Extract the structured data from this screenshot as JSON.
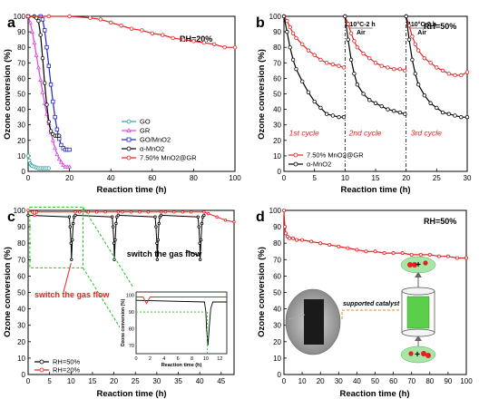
{
  "chart_data": [
    {
      "panel": "a",
      "type": "line",
      "annotation": "RH=20%",
      "xlabel": "Reaction time (h)",
      "ylabel": "Ozone conversion (%)",
      "xlim": [
        0,
        100
      ],
      "ylim": [
        0,
        100
      ],
      "xticks": [
        0,
        20,
        40,
        60,
        80,
        100
      ],
      "yticks": [
        0,
        10,
        20,
        30,
        40,
        50,
        60,
        70,
        80,
        90,
        100
      ],
      "legend_position": "bottom-right",
      "series": [
        {
          "name": "GO",
          "color": "#2ba3a3",
          "marker": "circle",
          "x": [
            0,
            0.5,
            1,
            1.5,
            2,
            3,
            4,
            5,
            6,
            7,
            8,
            9,
            10
          ],
          "y": [
            10,
            7,
            5,
            4,
            3.5,
            3,
            2.5,
            2,
            2,
            2,
            2,
            2,
            2
          ]
        },
        {
          "name": "GR",
          "color": "#e040e0",
          "marker": "triangle",
          "x": [
            0,
            1,
            2,
            3,
            4,
            5,
            6,
            7,
            8,
            9,
            10,
            11,
            12,
            13,
            14,
            15,
            16,
            17,
            18,
            19,
            20
          ],
          "y": [
            100,
            96,
            90,
            83,
            75,
            67,
            59,
            51,
            44,
            37,
            31,
            25,
            20,
            15,
            11,
            8,
            6,
            4,
            3,
            3,
            3
          ]
        },
        {
          "name": "GO/MnO2",
          "color": "#2222cc",
          "marker": "square",
          "x": [
            0,
            6,
            7,
            8,
            9,
            10,
            11,
            12,
            13,
            14,
            15,
            16,
            17,
            18,
            19,
            20
          ],
          "y": [
            100,
            100,
            98,
            91,
            80,
            68,
            56,
            45,
            35,
            27,
            21,
            17,
            15,
            14,
            14,
            14
          ]
        },
        {
          "name": "α-MnO2",
          "color": "#000000",
          "marker": "circle",
          "x": [
            0,
            3,
            4,
            5,
            6,
            7,
            8,
            9,
            10,
            11,
            12,
            13,
            14,
            15
          ],
          "y": [
            100,
            100,
            99,
            97,
            88,
            73,
            57,
            43,
            32,
            26,
            24,
            23,
            23,
            23
          ]
        },
        {
          "name": "7.50% MnO2@GR",
          "color": "#e82020",
          "marker": "circle",
          "x": [
            0,
            10,
            20,
            30,
            35,
            40,
            45,
            50,
            55,
            60,
            65,
            70,
            75,
            80,
            85,
            90,
            95,
            100
          ],
          "y": [
            100,
            100,
            100,
            99,
            98,
            96,
            94,
            92,
            91,
            89,
            88,
            86,
            85,
            84,
            83,
            82,
            80,
            80
          ]
        }
      ]
    },
    {
      "panel": "b",
      "type": "line",
      "annotation": "RH=50%",
      "xlabel": "Reaction time (h)",
      "ylabel": "Ozone conversion (%)",
      "xlim": [
        0,
        30
      ],
      "ylim": [
        0,
        100
      ],
      "xticks": [
        0,
        5,
        10,
        15,
        20,
        25,
        30
      ],
      "yticks": [
        0,
        10,
        20,
        30,
        40,
        50,
        60,
        70,
        80,
        90,
        100
      ],
      "cycle_dividers": [
        10,
        20
      ],
      "regeneration_labels": [
        {
          "x": 12.6,
          "line1": "110°C-2 h",
          "line2": "Air"
        },
        {
          "x": 22.6,
          "line1": "110°C-2 h",
          "line2": "Air"
        }
      ],
      "cycle_labels": [
        {
          "x": 3.3,
          "text": "1st cycle"
        },
        {
          "x": 13.3,
          "text": "2nd cycle"
        },
        {
          "x": 23.3,
          "text": "3rd cycle"
        }
      ],
      "legend_position": "bottom-left",
      "series": [
        {
          "name": "7.50% MnO2@GR",
          "color": "#e82020",
          "marker": "circle",
          "x": [
            0,
            0.5,
            1,
            1.5,
            2,
            3,
            4,
            5,
            6,
            7,
            8,
            9,
            9.8,
            10,
            10.5,
            11,
            11.5,
            12,
            13,
            14,
            15,
            16,
            17,
            18,
            19,
            19.8,
            20,
            20.5,
            21,
            21.5,
            22,
            23,
            24,
            25,
            26,
            27,
            28,
            29,
            30
          ],
          "y": [
            100,
            97,
            93,
            89,
            86,
            82,
            78,
            75,
            72,
            70,
            69,
            68,
            67,
            100,
            95,
            89,
            84,
            80,
            76,
            73,
            70,
            68,
            67,
            66,
            66,
            65,
            100,
            94,
            87,
            82,
            78,
            73,
            70,
            67,
            65,
            63,
            62,
            62,
            64
          ]
        },
        {
          "name": "α-MnO2",
          "color": "#000000",
          "marker": "circle",
          "x": [
            0,
            0.5,
            1,
            1.5,
            2,
            3,
            4,
            5,
            6,
            7,
            8,
            9,
            9.8,
            10,
            10.5,
            11,
            11.5,
            12,
            13,
            14,
            15,
            16,
            17,
            18,
            19,
            19.8,
            20,
            20.5,
            21,
            21.5,
            22,
            23,
            24,
            25,
            26,
            27,
            28,
            29,
            30
          ],
          "y": [
            100,
            90,
            80,
            72,
            66,
            58,
            51,
            45,
            41,
            37,
            36,
            35,
            35,
            100,
            85,
            72,
            63,
            56,
            50,
            46,
            44,
            42,
            40,
            39,
            38,
            37,
            100,
            85,
            72,
            63,
            56,
            49,
            44,
            41,
            38,
            37,
            36,
            35,
            35
          ]
        }
      ]
    },
    {
      "panel": "c",
      "type": "line",
      "xlabel": "Reaction time (h)",
      "ylabel": "Ozone conversion (%)",
      "xlim": [
        0,
        48
      ],
      "ylim": [
        0,
        100
      ],
      "xticks": [
        0,
        5,
        10,
        15,
        20,
        25,
        30,
        35,
        40,
        45
      ],
      "yticks": [
        0,
        10,
        20,
        30,
        40,
        50,
        60,
        70,
        80,
        90,
        100
      ],
      "annotations": [
        "switch the gas flow",
        "switch the gas flow"
      ],
      "legend_position": "bottom-left",
      "series": [
        {
          "name": "RH=50%",
          "color": "#000000",
          "marker": "circle",
          "x": [
            0,
            9.6,
            9.8,
            10,
            10.1,
            10.3,
            10.5,
            10.7,
            11,
            19.6,
            19.8,
            20,
            20.1,
            20.3,
            20.5,
            20.7,
            21,
            29.6,
            29.8,
            30,
            30.1,
            30.3,
            30.5,
            30.7,
            31,
            39.6,
            39.8,
            40,
            40.1,
            40.3,
            40.5,
            40.7,
            41
          ],
          "y": [
            97,
            96,
            90,
            80,
            70,
            82,
            92,
            96,
            97,
            96,
            90,
            80,
            70,
            82,
            92,
            96,
            97,
            96,
            90,
            80,
            70,
            82,
            92,
            96,
            97,
            96,
            90,
            80,
            70,
            82,
            92,
            96,
            97
          ]
        },
        {
          "name": "RH=20%",
          "color": "#e82020",
          "marker": "circle",
          "x": [
            0,
            1,
            1.5,
            2,
            11,
            12,
            14,
            16,
            18,
            21,
            22,
            24,
            26,
            28,
            31,
            32,
            34,
            36,
            38,
            41,
            42,
            44,
            46,
            48
          ],
          "y": [
            100,
            99,
            97,
            99,
            99,
            99,
            99,
            99,
            99,
            99,
            99,
            99,
            99,
            99,
            99,
            99,
            99,
            99,
            99,
            99,
            98,
            96,
            94,
            93
          ]
        }
      ],
      "inset": {
        "xlabel": "Reaction time (h)",
        "ylabel": "Ozone conversion (%)",
        "xlim": [
          0,
          13
        ],
        "ylim": [
          65,
          102
        ],
        "xticks": [
          0,
          2,
          4,
          6,
          8,
          10,
          12
        ],
        "yticks": [
          70,
          80,
          90,
          100
        ],
        "series": [
          {
            "name": "RH=50%",
            "color": "#000000",
            "x": [
              0,
              9.8,
              10,
              10.1,
              10.3,
              10.5,
              10.7,
              11,
              13
            ],
            "y": [
              97,
              96,
              90,
              80,
              70,
              82,
              92,
              96,
              96
            ]
          },
          {
            "name": "RH=20%",
            "color": "#e82020",
            "x": [
              0,
              1,
              1.5,
              2,
              4,
              6,
              8,
              10,
              11,
              13
            ],
            "y": [
              99,
              99,
              95,
              99,
              99,
              99,
              99,
              99,
              99,
              99
            ]
          }
        ]
      }
    },
    {
      "panel": "d",
      "type": "line",
      "annotation": "RH=50%",
      "xlabel": "Reaction time (h)",
      "ylabel": "Ozone conversion (%)",
      "xlim": [
        0,
        100
      ],
      "ylim": [
        0,
        100
      ],
      "xticks": [
        0,
        10,
        20,
        30,
        40,
        50,
        60,
        70,
        80,
        90,
        100
      ],
      "yticks": [
        0,
        10,
        20,
        30,
        40,
        50,
        60,
        70,
        80,
        90,
        100
      ],
      "diagram_label": "supported catalyst",
      "series": [
        {
          "name": "",
          "color": "#e82020",
          "marker": "circle",
          "x": [
            0,
            0.5,
            1,
            2,
            3,
            5,
            7,
            10,
            15,
            20,
            25,
            30,
            35,
            40,
            45,
            50,
            55,
            60,
            65,
            70,
            75,
            80,
            85,
            90,
            95,
            100
          ],
          "y": [
            100,
            90,
            86,
            84,
            83,
            83,
            82,
            82,
            81,
            80,
            79,
            78,
            77,
            76,
            75,
            75,
            74,
            74,
            74,
            73,
            73,
            73,
            72,
            72,
            71,
            71
          ]
        }
      ]
    }
  ],
  "panel_labels": [
    "a",
    "b",
    "c",
    "d"
  ]
}
